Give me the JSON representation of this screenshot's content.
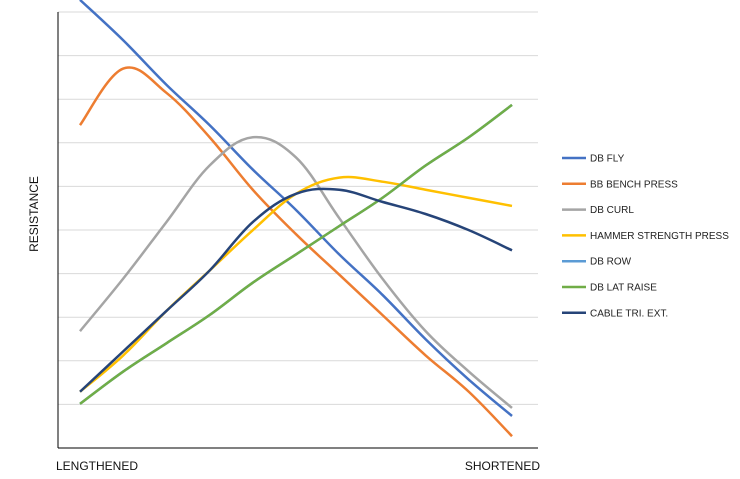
{
  "chart_data": {
    "type": "line",
    "title": "",
    "xlabel": "",
    "ylabel": "RESISTANCE",
    "x_axis_labels": {
      "start": "LENGTHENED",
      "end": "SHORTENED"
    },
    "x": [
      0,
      1,
      2,
      3,
      4,
      5,
      6,
      7,
      8,
      9,
      10
    ],
    "xlim": [
      0,
      10
    ],
    "ylim": [
      0,
      10
    ],
    "grid": true,
    "legend_position": "right",
    "series": [
      {
        "name": "DB FLY",
        "color": "#4472c4",
        "values": [
          10.3,
          9.3,
          8.2,
          7.2,
          6.1,
          5.1,
          4.0,
          3.0,
          1.9,
          0.9,
          0.0
        ]
      },
      {
        "name": "BB BENCH PRESS",
        "color": "#ed7d31",
        "values": [
          7.2,
          8.6,
          8.0,
          6.9,
          5.6,
          4.5,
          3.5,
          2.5,
          1.5,
          0.6,
          -0.5
        ]
      },
      {
        "name": "DB CURL",
        "color": "#a5a5a5",
        "values": [
          2.1,
          3.4,
          4.8,
          6.2,
          6.9,
          6.4,
          4.9,
          3.4,
          2.1,
          1.1,
          0.2
        ]
      },
      {
        "name": "HAMMER STRENGTH PRESS",
        "color": "#ffc000",
        "values": [
          0.6,
          1.5,
          2.6,
          3.6,
          4.6,
          5.5,
          5.9,
          5.8,
          5.6,
          5.4,
          5.2
        ]
      },
      {
        "name": "DB ROW",
        "color": "#5b9bd5",
        "values": [
          0.3,
          1.1,
          1.8,
          2.5,
          3.3,
          4.0,
          4.7,
          5.4,
          6.2,
          6.9,
          7.7
        ]
      },
      {
        "name": "DB LAT RAISE",
        "color": "#70ad47",
        "values": [
          0.3,
          1.1,
          1.8,
          2.5,
          3.3,
          4.0,
          4.7,
          5.4,
          6.2,
          6.9,
          7.7
        ]
      },
      {
        "name": "CABLE TRI. EXT.",
        "color": "#264478",
        "values": [
          0.6,
          1.6,
          2.6,
          3.6,
          4.8,
          5.5,
          5.6,
          5.3,
          5.0,
          4.6,
          4.1
        ]
      }
    ]
  }
}
